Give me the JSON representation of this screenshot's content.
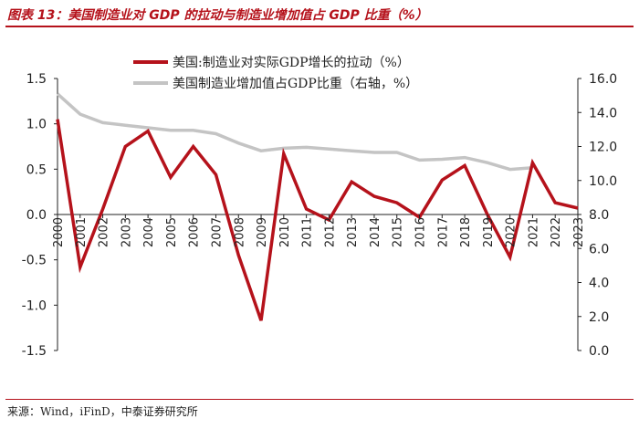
{
  "header": {
    "title": "图表 13：美国制造业对 GDP 的拉动与制造业增加值占 GDP 比重（%）"
  },
  "footer": {
    "source": "来源：Wind，iFinD，中泰证券研究所"
  },
  "colors": {
    "series1": "#b5121b",
    "series2": "#c4c4c4",
    "accent": "#b5121b"
  },
  "chart_data": {
    "type": "line",
    "title": "图表 13：美国制造业对 GDP 的拉动与制造业增加值占 GDP 比重（%）",
    "xlabel": "",
    "ylabel": "",
    "x": [
      2000,
      2001,
      2002,
      2003,
      2004,
      2005,
      2006,
      2007,
      2008,
      2009,
      2010,
      2011,
      2012,
      2013,
      2014,
      2015,
      2016,
      2017,
      2018,
      2019,
      2020,
      2021,
      2022,
      2023
    ],
    "x_tick_labels": [
      "2000",
      "2001",
      "2002",
      "2003",
      "2004",
      "2005",
      "2006",
      "2007",
      "2008",
      "2009",
      "2010",
      "2011",
      "2012",
      "2013",
      "2014",
      "2015",
      "2016",
      "2017",
      "2018",
      "2019",
      "2020",
      "2021",
      "2022",
      "2023"
    ],
    "y_left_lim": [
      -1.5,
      1.5
    ],
    "y_left_ticks": [
      "-1.5",
      "-1.0",
      "-0.5",
      "0.0",
      "0.5",
      "1.0",
      "1.5"
    ],
    "y_right_lim": [
      0.0,
      16.0
    ],
    "y_right_ticks": [
      "0.0",
      "2.0",
      "4.0",
      "6.0",
      "8.0",
      "10.0",
      "12.0",
      "14.0",
      "16.0"
    ],
    "legend_position": "top-center",
    "series": [
      {
        "name": "美国:制造业对实际GDP增长的拉动（%）",
        "axis": "left",
        "color": "#b5121b",
        "x": [
          2000,
          2001,
          2002,
          2003,
          2004,
          2005,
          2006,
          2007,
          2008,
          2009,
          2010,
          2011,
          2012,
          2013,
          2014,
          2015,
          2016,
          2017,
          2018,
          2019,
          2020,
          2021,
          2022,
          2023
        ],
        "values": [
          1.05,
          -0.58,
          0.06,
          0.75,
          0.92,
          0.41,
          0.75,
          0.44,
          -0.45,
          -1.17,
          0.67,
          0.06,
          -0.06,
          0.36,
          0.2,
          0.13,
          -0.03,
          0.38,
          0.54,
          0.0,
          -0.47,
          0.57,
          0.13,
          0.07
        ]
      },
      {
        "name": "美国制造业增加值占GDP比重（右轴，%）",
        "axis": "right",
        "color": "#c4c4c4",
        "x": [
          2000,
          2001,
          2002,
          2003,
          2004,
          2005,
          2006,
          2007,
          2008,
          2009,
          2010,
          2011,
          2012,
          2013,
          2014,
          2015,
          2016,
          2017,
          2018,
          2019,
          2020,
          2021
        ],
        "values": [
          15.1,
          13.9,
          13.4,
          13.25,
          13.1,
          12.95,
          12.95,
          12.75,
          12.2,
          11.75,
          11.9,
          11.95,
          11.85,
          11.75,
          11.65,
          11.65,
          11.2,
          11.25,
          11.35,
          11.05,
          10.65,
          10.75
        ]
      }
    ]
  }
}
